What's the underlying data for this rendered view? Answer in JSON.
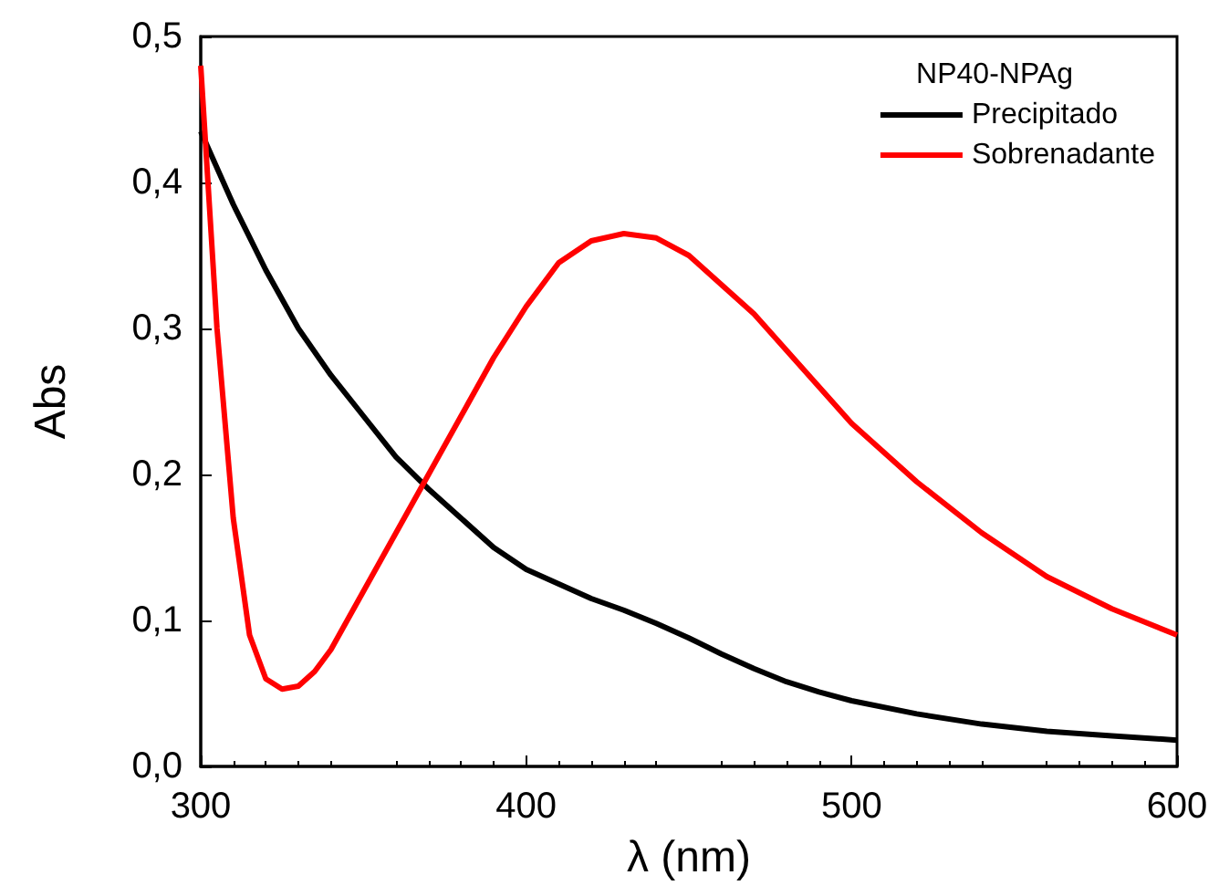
{
  "chart_data": {
    "type": "line",
    "xlabel": "λ (nm)",
    "ylabel": "Abs",
    "legend_title": "NP40-NPAg",
    "legend": "top right",
    "marker": "none",
    "line_style": "solid",
    "grid": false,
    "xlim": [
      300,
      600
    ],
    "xticks": [
      300,
      400,
      500,
      600
    ],
    "ylim": [
      0,
      0.5
    ],
    "yticks": [
      {
        "value": 0,
        "label": "0,0"
      },
      {
        "value": 0.1,
        "label": "0,1"
      },
      {
        "value": 0.2,
        "label": "0,2"
      },
      {
        "value": 0.3,
        "label": "0,3"
      },
      {
        "value": 0.4,
        "label": "0,4"
      },
      {
        "value": 0.5,
        "label": "0,5"
      }
    ],
    "series": [
      {
        "name": "Precipitado",
        "color": "#000000",
        "x": [
          300,
          310,
          320,
          330,
          340,
          350,
          360,
          370,
          380,
          390,
          400,
          410,
          420,
          430,
          440,
          450,
          460,
          470,
          480,
          490,
          500,
          520,
          540,
          560,
          580,
          600
        ],
        "values": [
          0.435,
          0.385,
          0.34,
          0.3,
          0.268,
          0.24,
          0.212,
          0.19,
          0.17,
          0.15,
          0.135,
          0.125,
          0.115,
          0.107,
          0.098,
          0.088,
          0.077,
          0.067,
          0.058,
          0.051,
          0.045,
          0.036,
          0.029,
          0.024,
          0.021,
          0.018
        ]
      },
      {
        "name": "Sobrenadante",
        "color": "#ff0000",
        "x": [
          300,
          305,
          310,
          315,
          320,
          325,
          330,
          335,
          340,
          350,
          360,
          370,
          380,
          390,
          400,
          410,
          420,
          430,
          440,
          450,
          460,
          470,
          480,
          490,
          500,
          520,
          540,
          560,
          580,
          600
        ],
        "values": [
          0.48,
          0.3,
          0.17,
          0.09,
          0.06,
          0.053,
          0.055,
          0.065,
          0.08,
          0.12,
          0.16,
          0.2,
          0.24,
          0.28,
          0.315,
          0.345,
          0.36,
          0.365,
          0.362,
          0.35,
          0.33,
          0.31,
          0.285,
          0.26,
          0.235,
          0.195,
          0.16,
          0.13,
          0.108,
          0.09
        ]
      }
    ]
  }
}
